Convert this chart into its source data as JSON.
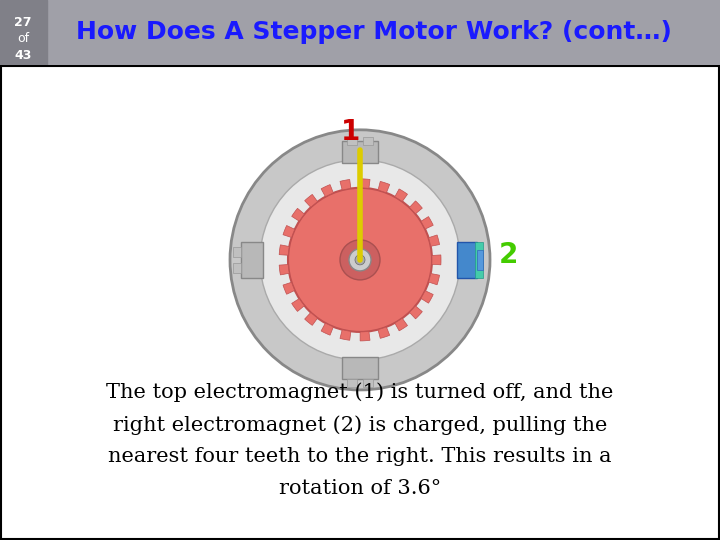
{
  "slide_number": "27",
  "slide_of": "of",
  "slide_total": "43",
  "title": "How Does A Stepper Motor Work? (cont…)",
  "header_bg": "#a0a0a8",
  "header_text_color": "#1a1aff",
  "slide_num_bg": "#808088",
  "slide_num_color": "#ffffff",
  "body_bg": "#ffffff",
  "border_color": "#000000",
  "body_text": "The top electromagnet (1) is turned off, and the\nright electromagnet (2) is charged, pulling the\nnearest four teeth to the right. This results in a\nrotation of 3.6°",
  "body_text_color": "#000000",
  "body_text_fontsize": 15,
  "label1_color": "#cc0000",
  "label2_color": "#44cc00",
  "label1_text": "1",
  "label2_text": "2",
  "gear_color": "#e8706a",
  "gear_edge": "#c05050",
  "needle_color": "#ddcc00"
}
